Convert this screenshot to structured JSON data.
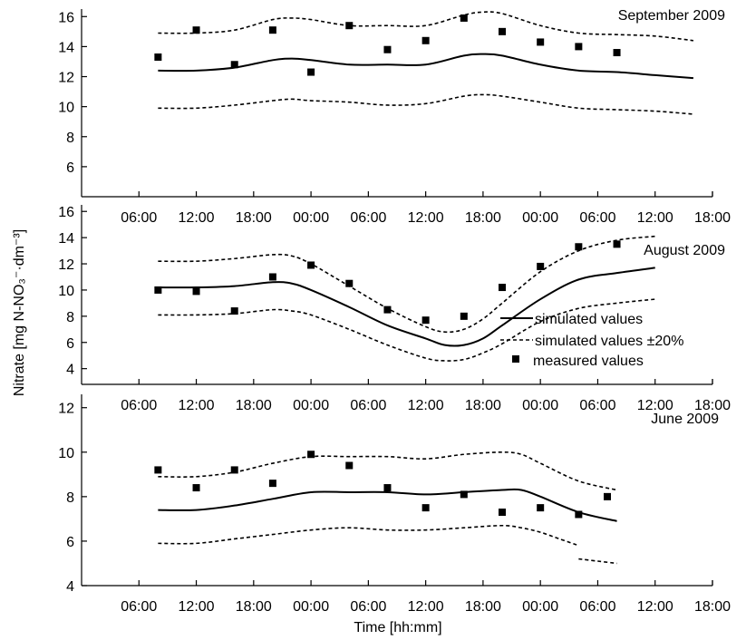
{
  "chart_data": [
    {
      "type": "line",
      "title": "September 2009",
      "ylim": [
        4,
        16.5
      ],
      "yticks": [
        "6",
        "8",
        "10",
        "12",
        "14",
        "16"
      ],
      "x": [
        "06:00",
        "12:00",
        "18:00",
        "00:00",
        "06:00",
        "12:00",
        "18:00",
        "00:00",
        "06:00",
        "12:00",
        "18:00"
      ],
      "series": [
        {
          "key": "simulated",
          "style": "solid",
          "values": [
            [
              8,
              12.4
            ],
            [
              12,
              12.4
            ],
            [
              16,
              12.6
            ],
            [
              20,
              13.1
            ],
            [
              22,
              13.2
            ],
            [
              24,
              13.1
            ],
            [
              28,
              12.8
            ],
            [
              32,
              12.8
            ],
            [
              36,
              12.8
            ],
            [
              40,
              13.4
            ],
            [
              42,
              13.5
            ],
            [
              44,
              13.4
            ],
            [
              48,
              12.8
            ],
            [
              52,
              12.4
            ],
            [
              56,
              12.3
            ],
            [
              60,
              12.1
            ],
            [
              64,
              11.9
            ]
          ]
        },
        {
          "key": "upper",
          "style": "dashed",
          "values": [
            [
              8,
              14.9
            ],
            [
              12,
              14.9
            ],
            [
              16,
              15.1
            ],
            [
              20,
              15.8
            ],
            [
              22,
              15.9
            ],
            [
              24,
              15.8
            ],
            [
              28,
              15.4
            ],
            [
              32,
              15.4
            ],
            [
              36,
              15.4
            ],
            [
              40,
              16.1
            ],
            [
              42,
              16.3
            ],
            [
              44,
              16.2
            ],
            [
              48,
              15.4
            ],
            [
              52,
              14.9
            ],
            [
              56,
              14.8
            ],
            [
              60,
              14.7
            ],
            [
              64,
              14.4
            ]
          ]
        },
        {
          "key": "lower",
          "style": "dashed",
          "values": [
            [
              8,
              9.9
            ],
            [
              12,
              9.9
            ],
            [
              16,
              10.1
            ],
            [
              20,
              10.4
            ],
            [
              22,
              10.5
            ],
            [
              24,
              10.4
            ],
            [
              28,
              10.3
            ],
            [
              32,
              10.1
            ],
            [
              36,
              10.2
            ],
            [
              40,
              10.7
            ],
            [
              42,
              10.8
            ],
            [
              44,
              10.7
            ],
            [
              48,
              10.3
            ],
            [
              52,
              9.9
            ],
            [
              56,
              9.8
            ],
            [
              60,
              9.7
            ],
            [
              64,
              9.5
            ]
          ]
        }
      ],
      "measured": [
        [
          8,
          13.3
        ],
        [
          12,
          15.1
        ],
        [
          16,
          12.8
        ],
        [
          20,
          15.1
        ],
        [
          24,
          12.3
        ],
        [
          28,
          15.4
        ],
        [
          32,
          13.8
        ],
        [
          36,
          14.4
        ],
        [
          40,
          15.9
        ],
        [
          44,
          15.0
        ],
        [
          48,
          14.3
        ],
        [
          52,
          14.0
        ],
        [
          56,
          13.6
        ]
      ]
    },
    {
      "type": "line",
      "title": "August 2009",
      "ylim": [
        2.8,
        16.5
      ],
      "yticks": [
        "4",
        "6",
        "8",
        "10",
        "12",
        "14",
        "16"
      ],
      "x": [
        "06:00",
        "12:00",
        "18:00",
        "00:00",
        "06:00",
        "12:00",
        "18:00",
        "00:00",
        "06:00",
        "12:00",
        "18:00"
      ],
      "series": [
        {
          "key": "simulated",
          "style": "solid",
          "values": [
            [
              8,
              10.2
            ],
            [
              12,
              10.2
            ],
            [
              16,
              10.3
            ],
            [
              20,
              10.6
            ],
            [
              22,
              10.5
            ],
            [
              24,
              10.0
            ],
            [
              28,
              8.7
            ],
            [
              32,
              7.3
            ],
            [
              36,
              6.3
            ],
            [
              38,
              5.8
            ],
            [
              40,
              5.8
            ],
            [
              42,
              6.3
            ],
            [
              44,
              7.3
            ],
            [
              48,
              9.3
            ],
            [
              52,
              10.8
            ],
            [
              56,
              11.3
            ],
            [
              60,
              11.7
            ]
          ]
        },
        {
          "key": "upper",
          "style": "dashed",
          "values": [
            [
              8,
              12.2
            ],
            [
              12,
              12.2
            ],
            [
              16,
              12.4
            ],
            [
              20,
              12.7
            ],
            [
              22,
              12.6
            ],
            [
              24,
              12.0
            ],
            [
              28,
              10.3
            ],
            [
              32,
              8.6
            ],
            [
              36,
              7.2
            ],
            [
              38,
              6.8
            ],
            [
              40,
              7.0
            ],
            [
              42,
              7.8
            ],
            [
              44,
              9.0
            ],
            [
              48,
              11.4
            ],
            [
              52,
              13.0
            ],
            [
              56,
              13.8
            ],
            [
              60,
              14.1
            ]
          ]
        },
        {
          "key": "lower",
          "style": "dashed",
          "values": [
            [
              8,
              8.1
            ],
            [
              12,
              8.1
            ],
            [
              16,
              8.2
            ],
            [
              20,
              8.5
            ],
            [
              22,
              8.4
            ],
            [
              24,
              8.1
            ],
            [
              28,
              7.0
            ],
            [
              32,
              5.8
            ],
            [
              36,
              4.8
            ],
            [
              38,
              4.6
            ],
            [
              40,
              4.7
            ],
            [
              42,
              5.2
            ],
            [
              44,
              5.9
            ],
            [
              48,
              7.6
            ],
            [
              52,
              8.6
            ],
            [
              56,
              9.0
            ],
            [
              60,
              9.3
            ]
          ]
        }
      ],
      "measured": [
        [
          8,
          10.0
        ],
        [
          12,
          9.9
        ],
        [
          16,
          8.4
        ],
        [
          20,
          11.0
        ],
        [
          24,
          11.9
        ],
        [
          28,
          10.5
        ],
        [
          32,
          8.5
        ],
        [
          36,
          7.7
        ],
        [
          40,
          8.0
        ],
        [
          44,
          10.2
        ],
        [
          48,
          11.8
        ],
        [
          52,
          13.3
        ],
        [
          56,
          13.5
        ]
      ]
    },
    {
      "type": "line",
      "title": "June 2009",
      "ylim": [
        4,
        12.6
      ],
      "yticks": [
        "4",
        "6",
        "8",
        "10",
        "12"
      ],
      "x": [
        "06:00",
        "12:00",
        "18:00",
        "00:00",
        "06:00",
        "12:00",
        "18:00",
        "00:00",
        "06:00",
        "12:00",
        "18:00"
      ],
      "series": [
        {
          "key": "simulated",
          "style": "solid",
          "values": [
            [
              8,
              7.4
            ],
            [
              12,
              7.4
            ],
            [
              16,
              7.6
            ],
            [
              20,
              7.9
            ],
            [
              24,
              8.2
            ],
            [
              28,
              8.2
            ],
            [
              32,
              8.2
            ],
            [
              36,
              8.1
            ],
            [
              40,
              8.2
            ],
            [
              44,
              8.3
            ],
            [
              46,
              8.3
            ],
            [
              48,
              8.0
            ],
            [
              52,
              7.3
            ],
            [
              56,
              6.9
            ]
          ]
        },
        {
          "key": "upper",
          "style": "dashed",
          "values": [
            [
              8,
              8.9
            ],
            [
              12,
              8.9
            ],
            [
              16,
              9.1
            ],
            [
              20,
              9.5
            ],
            [
              24,
              9.8
            ],
            [
              28,
              9.8
            ],
            [
              32,
              9.8
            ],
            [
              36,
              9.7
            ],
            [
              40,
              9.9
            ],
            [
              44,
              10.0
            ],
            [
              46,
              9.9
            ],
            [
              48,
              9.5
            ],
            [
              52,
              8.7
            ],
            [
              56,
              8.3
            ]
          ]
        },
        {
          "key": "lower",
          "style": "dashed",
          "values": [
            [
              8,
              5.9
            ],
            [
              12,
              5.9
            ],
            [
              16,
              6.1
            ],
            [
              20,
              6.3
            ],
            [
              24,
              6.5
            ],
            [
              28,
              6.6
            ],
            [
              32,
              6.5
            ],
            [
              36,
              6.5
            ],
            [
              40,
              6.6
            ],
            [
              44,
              6.7
            ],
            [
              46,
              6.6
            ],
            [
              48,
              6.4
            ],
            [
              50,
              6.1
            ],
            [
              52,
              5.8
            ]
          ]
        },
        {
          "key": "lower-tail",
          "style": "dashed",
          "values": [
            [
              52,
              5.2
            ],
            [
              54,
              5.1
            ],
            [
              56,
              5.0
            ]
          ]
        }
      ],
      "measured": [
        [
          8,
          9.2
        ],
        [
          12,
          8.4
        ],
        [
          16,
          9.2
        ],
        [
          20,
          8.6
        ],
        [
          24,
          9.9
        ],
        [
          28,
          9.4
        ],
        [
          32,
          8.4
        ],
        [
          36,
          7.5
        ],
        [
          40,
          8.1
        ],
        [
          44,
          7.3
        ],
        [
          48,
          7.5
        ],
        [
          52,
          7.2
        ],
        [
          55,
          8.0
        ]
      ]
    }
  ],
  "axes": {
    "ylabel": "Nitrate [mg N-NO₃⁻·dm⁻³]",
    "xlabel": "Time [hh:mm]"
  },
  "legend": {
    "items": [
      {
        "label": "simulated values",
        "style": "solid"
      },
      {
        "label": "simulated values ±20%",
        "style": "dashed"
      },
      {
        "label": "measured values",
        "style": "marker"
      }
    ]
  },
  "colors": {
    "ink": "#000000",
    "background": "#ffffff"
  }
}
